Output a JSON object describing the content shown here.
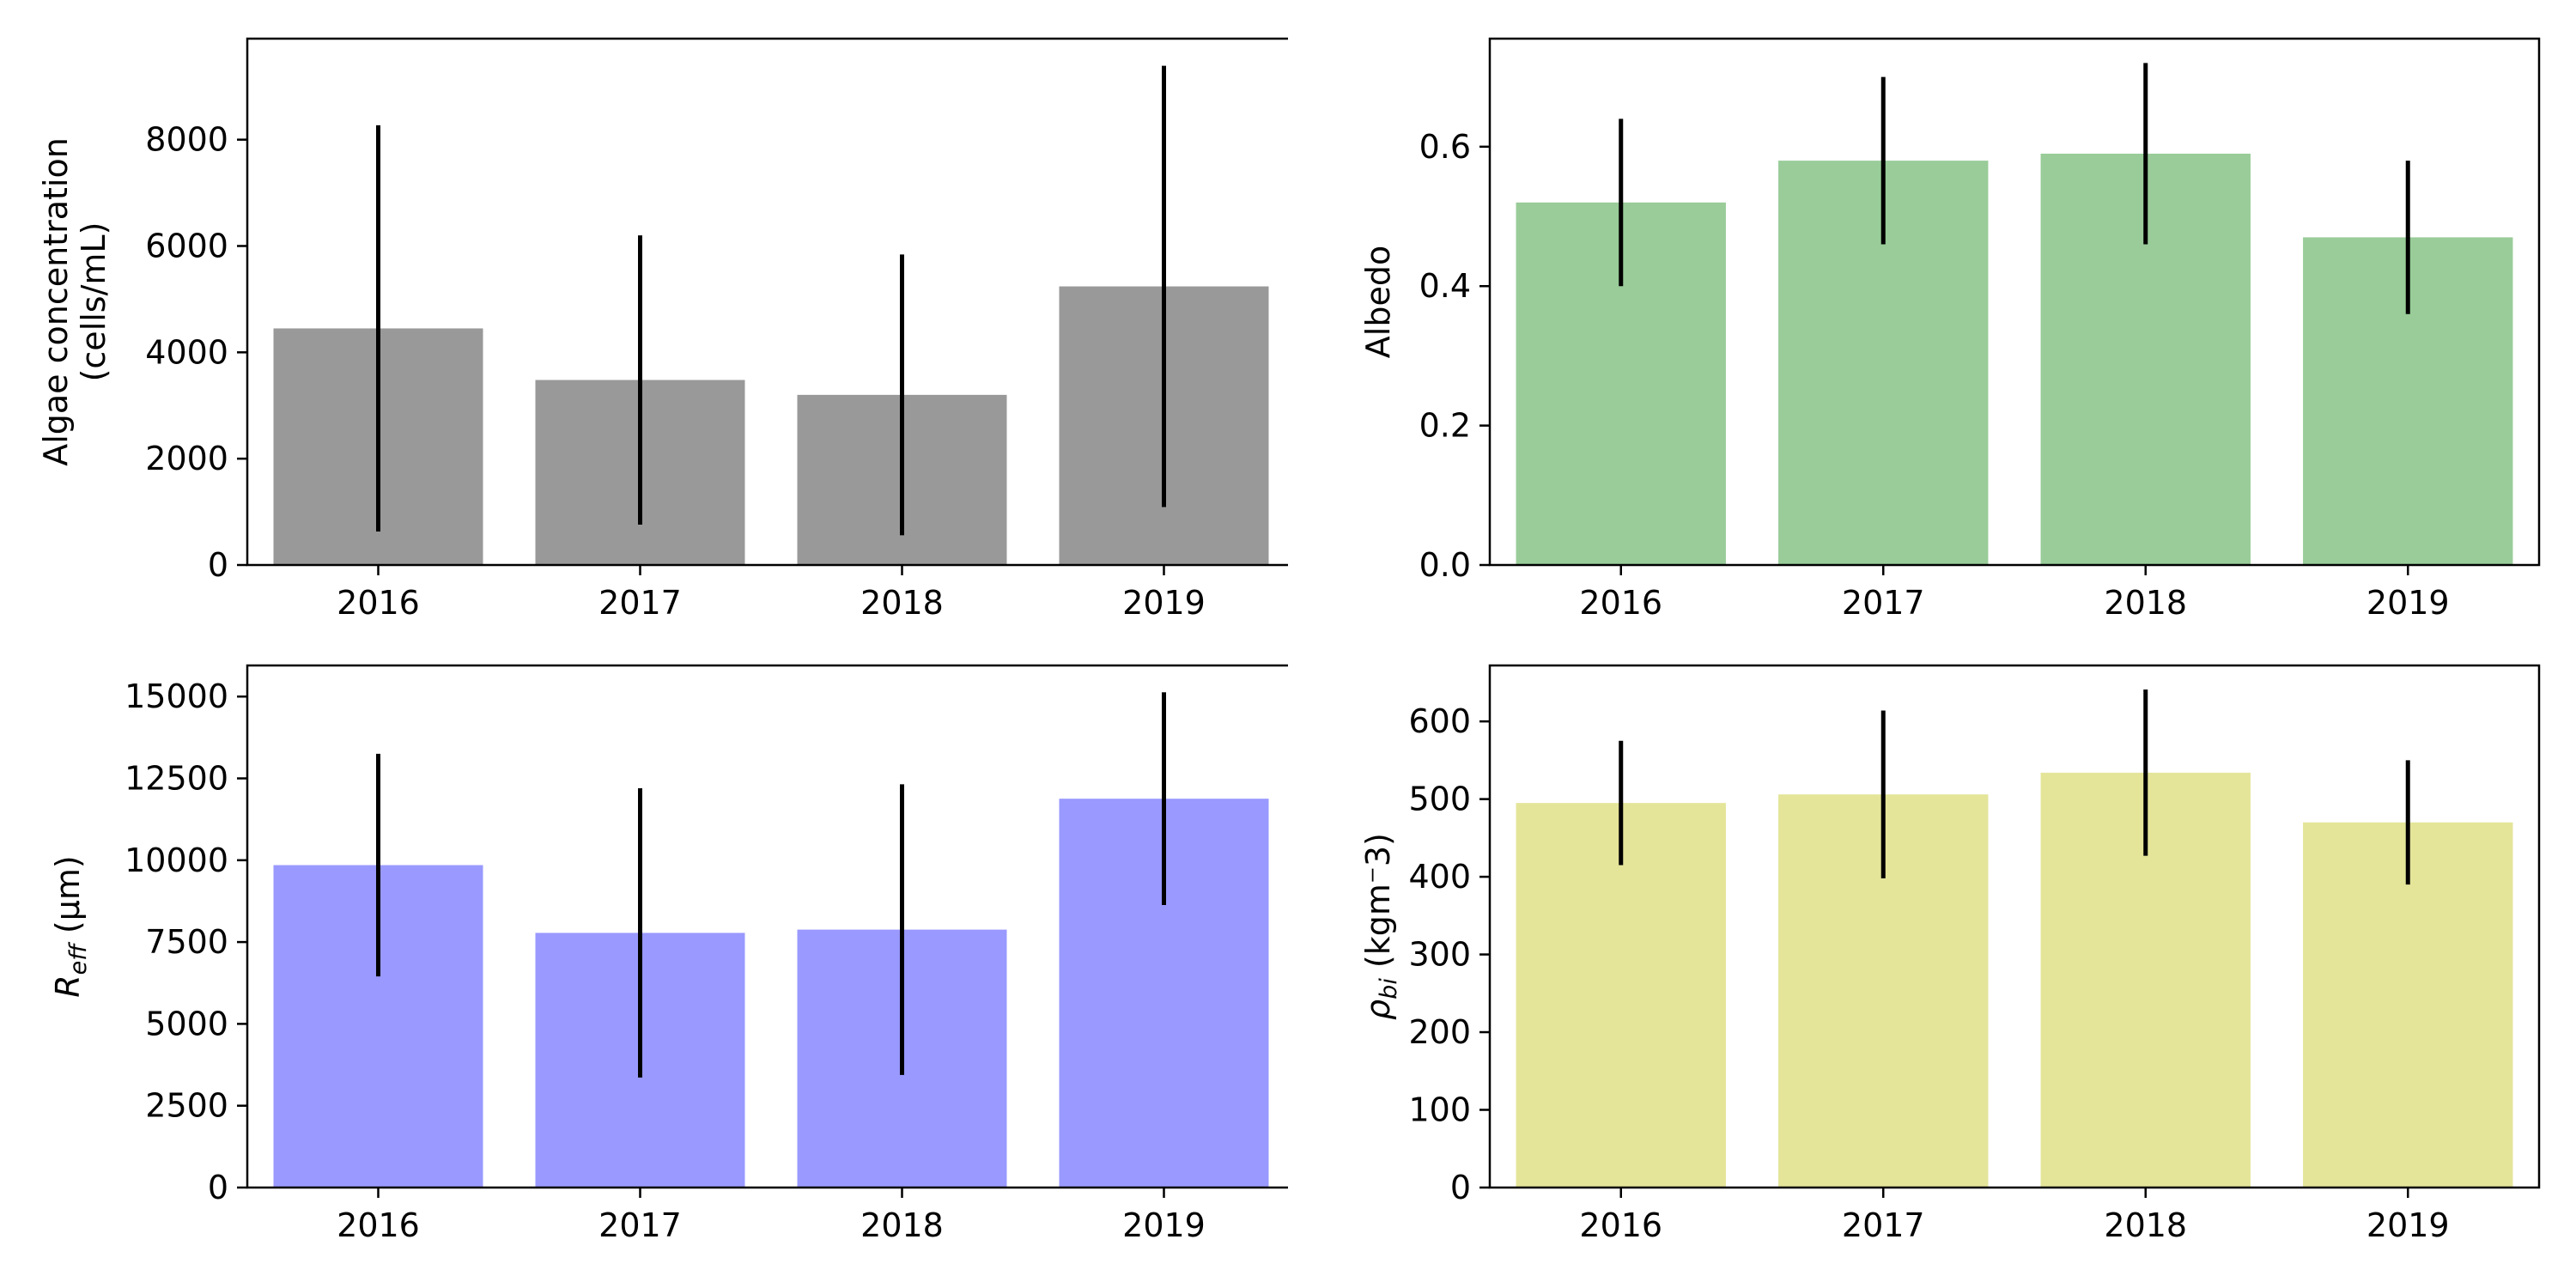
{
  "chart_data": [
    {
      "type": "bar",
      "categories": [
        "2016",
        "2017",
        "2018",
        "2019"
      ],
      "values": [
        4450,
        3480,
        3200,
        5240
      ],
      "errors": [
        3820,
        2720,
        2640,
        4150
      ],
      "bar_color": "#999999",
      "error_color": "#000000",
      "ylabel_lines": [
        "Algae concentration",
        "(cells/mL)"
      ],
      "ylabel_sub": "",
      "ylabel_post": "",
      "ylim": [
        0,
        9900
      ],
      "yticks": [
        0,
        2000,
        4000,
        6000,
        8000
      ],
      "yticklabels": [
        "0",
        "2000",
        "4000",
        "6000",
        "8000"
      ]
    },
    {
      "type": "bar",
      "categories": [
        "2016",
        "2017",
        "2018",
        "2019"
      ],
      "values": [
        0.52,
        0.58,
        0.59,
        0.47
      ],
      "errors": [
        0.12,
        0.12,
        0.13,
        0.11
      ],
      "bar_color": "#99cc99",
      "error_color": "#000000",
      "ylabel_lines": [
        "Albedo"
      ],
      "ylabel_sub": "",
      "ylabel_post": "",
      "ylim": [
        0,
        0.755
      ],
      "yticks": [
        0,
        0.2,
        0.4,
        0.6
      ],
      "yticklabels": [
        "0.0",
        "0.2",
        "0.4",
        "0.6"
      ]
    },
    {
      "type": "bar",
      "categories": [
        "2016",
        "2017",
        "2018",
        "2019"
      ],
      "values": [
        9850,
        7780,
        7880,
        11880
      ],
      "errors": [
        3400,
        4420,
        4440,
        3250
      ],
      "bar_color": "#9999ff",
      "error_color": "#000000",
      "ylabel_lines": [
        "R"
      ],
      "ylabel_sub": "eff",
      "ylabel_post": " (μm)",
      "ylim": [
        0,
        15950
      ],
      "yticks": [
        0,
        2500,
        5000,
        7500,
        10000,
        12500,
        15000
      ],
      "yticklabels": [
        "0",
        "2500",
        "5000",
        "7500",
        "10000",
        "12500",
        "15000"
      ]
    },
    {
      "type": "bar",
      "categories": [
        "2016",
        "2017",
        "2018",
        "2019"
      ],
      "values": [
        495,
        506,
        534,
        470
      ],
      "errors": [
        80,
        108,
        107,
        80
      ],
      "bar_color": "#e4e599",
      "error_color": "#000000",
      "ylabel_lines": [
        "ρ"
      ],
      "ylabel_sub": "bi",
      "ylabel_post": " (kgm⁻3)",
      "ylim": [
        0,
        672
      ],
      "yticks": [
        0,
        100,
        200,
        300,
        400,
        500,
        600
      ],
      "yticklabels": [
        "0",
        "100",
        "200",
        "300",
        "400",
        "500",
        "600"
      ]
    }
  ]
}
